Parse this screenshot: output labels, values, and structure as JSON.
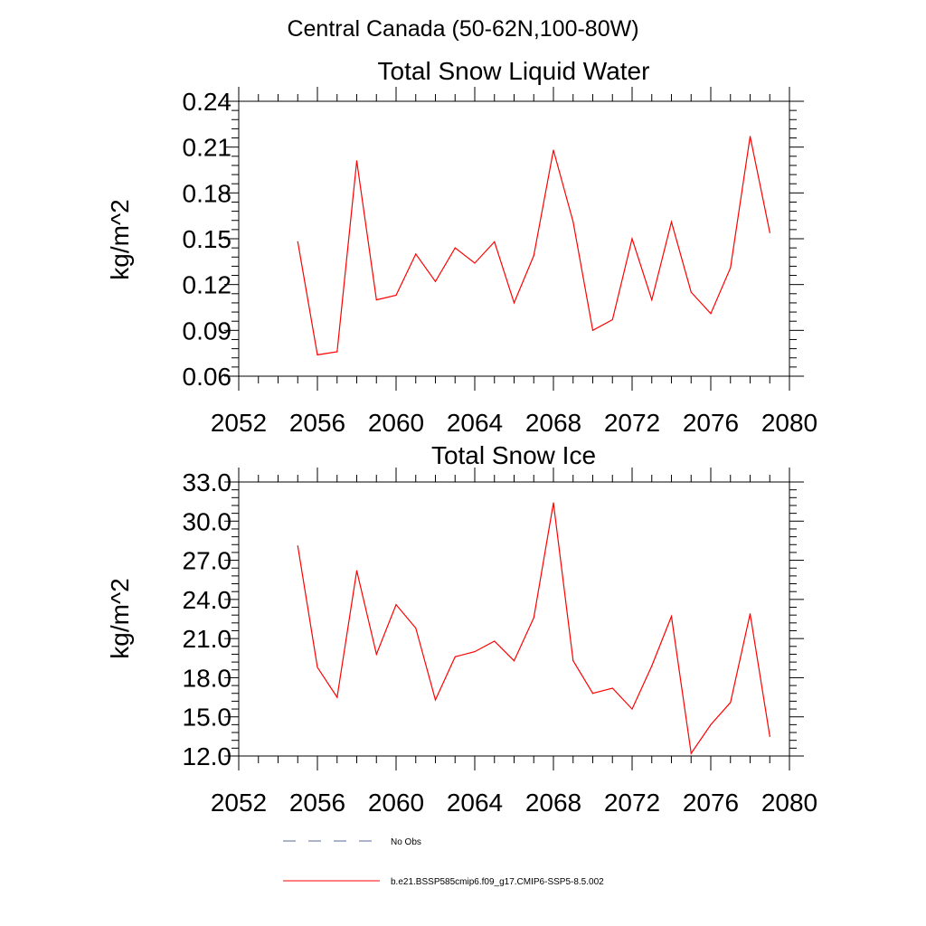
{
  "figure": {
    "title": "Central Canada (50-62N,100-80W)"
  },
  "chart_data": [
    {
      "type": "line",
      "title": "Total Snow Liquid Water",
      "ylabel": "kg/m^2",
      "xlabel": "",
      "xlim": [
        2052,
        2080
      ],
      "ylim": [
        0.06,
        0.24
      ],
      "x_ticks": [
        2052,
        2056,
        2060,
        2064,
        2068,
        2072,
        2076,
        2080
      ],
      "y_ticks": [
        0.06,
        0.09,
        0.12,
        0.15,
        0.18,
        0.21,
        0.24
      ],
      "y_tick_labels": [
        "0.06",
        "0.09",
        "0.12",
        "0.15",
        "0.18",
        "0.21",
        "0.24"
      ],
      "grid": false,
      "series": [
        {
          "color": "#ff0000",
          "x": [
            2055,
            2056,
            2057,
            2058,
            2059,
            2060,
            2061,
            2062,
            2063,
            2064,
            2065,
            2066,
            2067,
            2068,
            2069,
            2070,
            2071,
            2072,
            2073,
            2074,
            2075,
            2076,
            2077,
            2078,
            2079
          ],
          "values": [
            0.148,
            0.074,
            0.076,
            0.201,
            0.11,
            0.113,
            0.14,
            0.122,
            0.144,
            0.134,
            0.148,
            0.108,
            0.139,
            0.208,
            0.161,
            0.09,
            0.097,
            0.15,
            0.11,
            0.161,
            0.115,
            0.101,
            0.131,
            0.217,
            0.154
          ]
        }
      ]
    },
    {
      "type": "line",
      "title": "Total Snow Ice",
      "ylabel": "kg/m^2",
      "xlabel": "",
      "xlim": [
        2052,
        2080
      ],
      "ylim": [
        12.0,
        33.0
      ],
      "x_ticks": [
        2052,
        2056,
        2060,
        2064,
        2068,
        2072,
        2076,
        2080
      ],
      "y_ticks": [
        12,
        15,
        18,
        21,
        24,
        27,
        30,
        33
      ],
      "y_tick_labels": [
        "12.0",
        "15.0",
        "18.0",
        "21.0",
        "24.0",
        "27.0",
        "30.0",
        "33.0"
      ],
      "grid": false,
      "series": [
        {
          "color": "#ff0000",
          "x": [
            2055,
            2056,
            2057,
            2058,
            2059,
            2060,
            2061,
            2062,
            2063,
            2064,
            2065,
            2066,
            2067,
            2068,
            2069,
            2070,
            2071,
            2072,
            2073,
            2074,
            2075,
            2076,
            2077,
            2078,
            2079
          ],
          "values": [
            28.1,
            18.8,
            16.5,
            26.2,
            19.8,
            23.6,
            21.8,
            16.3,
            19.6,
            20.0,
            20.8,
            19.3,
            22.6,
            31.4,
            19.3,
            16.8,
            17.2,
            15.6,
            18.9,
            22.7,
            12.2,
            14.4,
            16.1,
            22.9,
            13.5
          ]
        }
      ]
    }
  ],
  "legend": {
    "items": [
      {
        "label": "No Obs",
        "color": "#5a6a9a",
        "style": "dashed"
      },
      {
        "label": "b.e21.BSSP585cmip6.f09_g17.CMIP6-SSP5-8.5.002",
        "color": "#ff0000",
        "style": "solid"
      }
    ]
  }
}
